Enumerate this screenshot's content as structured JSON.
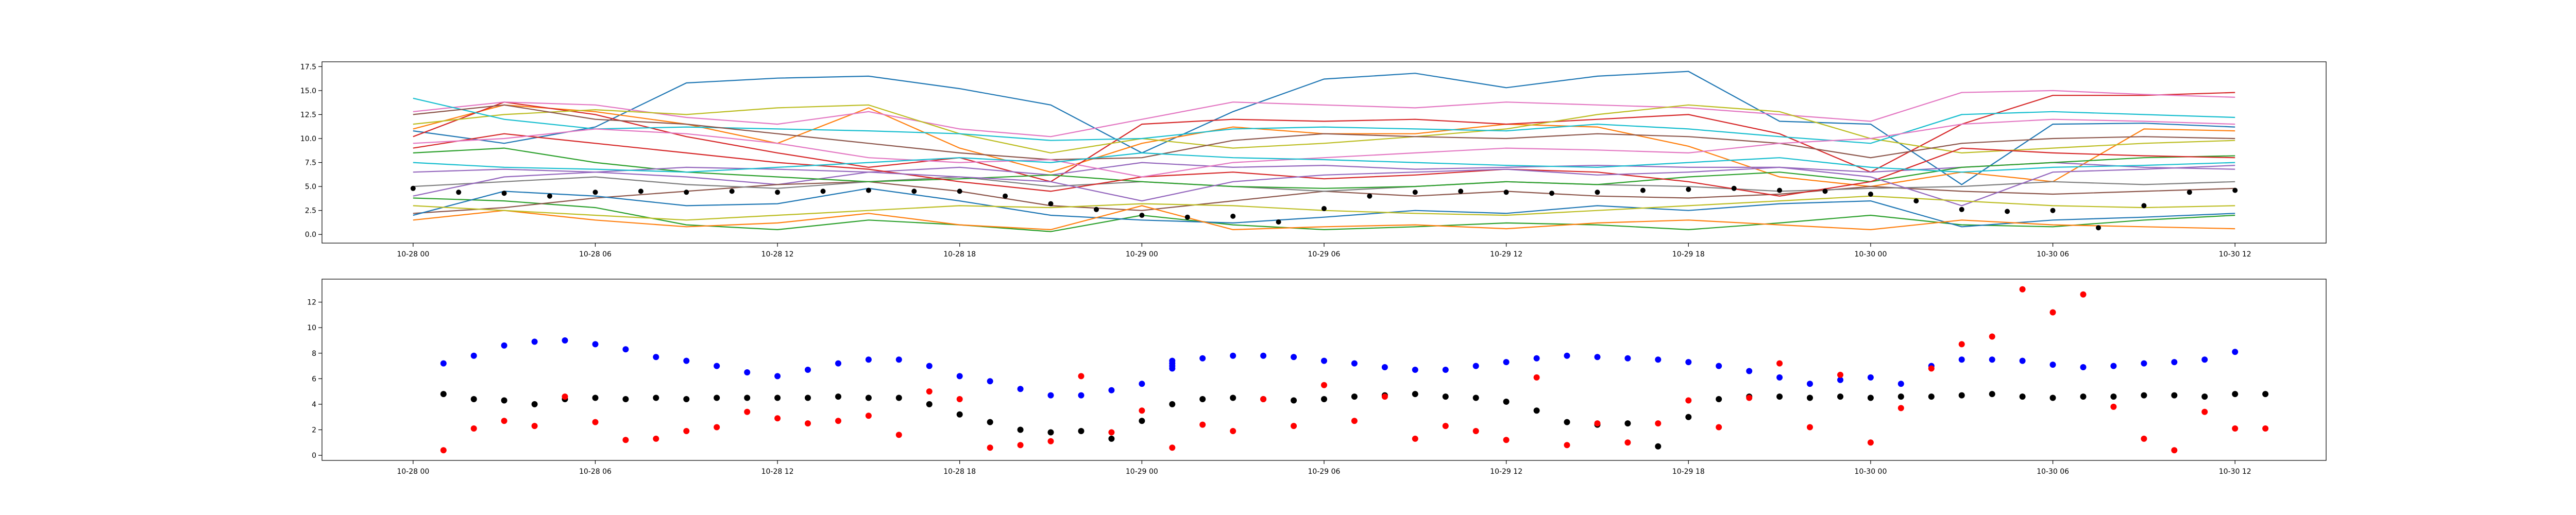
{
  "chart_data": [
    {
      "type": "line",
      "title": "",
      "xlabel": "",
      "ylabel": "",
      "x_ticks": [
        "10-28 00",
        "10-28 06",
        "10-28 12",
        "10-28 18",
        "10-29 00",
        "10-29 06",
        "10-29 12",
        "10-29 18",
        "10-30 00",
        "10-30 06",
        "10-30 12"
      ],
      "x_range_hours": [
        -3.0,
        63.0
      ],
      "ylim": [
        -0.9,
        18.0
      ],
      "y_ticks": [
        0.0,
        2.5,
        5.0,
        7.5,
        10.0,
        12.5,
        15.0,
        17.5
      ],
      "y_tick_labels": [
        "0.0",
        "2.5",
        "5.0",
        "7.5",
        "10.0",
        "12.5",
        "15.0",
        "17.5"
      ],
      "x_hours": [
        0,
        3,
        6,
        9,
        12,
        15,
        18,
        21,
        24,
        27,
        30,
        33,
        36,
        39,
        42,
        45,
        48,
        51,
        54,
        57,
        60
      ],
      "series": [
        {
          "color": "#1f77b4",
          "values": [
            10.8,
            9.5,
            11.2,
            15.8,
            16.3,
            16.5,
            15.2,
            13.5,
            8.5,
            12.8,
            16.2,
            16.8,
            15.3,
            16.5,
            17.0,
            11.8,
            11.5,
            5.2,
            11.5,
            11.6,
            11.2
          ]
        },
        {
          "color": "#ff7f0e",
          "values": [
            11.0,
            13.5,
            12.8,
            11.5,
            9.5,
            13.2,
            9.0,
            6.5,
            9.5,
            11.2,
            10.5,
            10.5,
            11.5,
            11.2,
            9.2,
            6.0,
            5.0,
            6.5,
            5.5,
            11.0,
            10.8
          ]
        },
        {
          "color": "#2ca02c",
          "values": [
            3.8,
            3.5,
            2.8,
            1.0,
            0.5,
            1.5,
            1.0,
            0.3,
            2.0,
            1.0,
            0.5,
            0.8,
            1.2,
            1.0,
            0.5,
            1.2,
            2.0,
            1.0,
            0.8,
            1.5,
            2.0
          ]
        },
        {
          "color": "#d62728",
          "values": [
            10.2,
            13.8,
            12.5,
            10.2,
            8.5,
            7.0,
            8.0,
            5.5,
            11.5,
            12.0,
            11.8,
            12.0,
            11.5,
            12.0,
            12.5,
            10.5,
            6.5,
            11.5,
            14.5,
            14.5,
            14.8
          ]
        },
        {
          "color": "#9467bd",
          "values": [
            6.5,
            6.8,
            6.5,
            6.0,
            5.2,
            6.5,
            7.0,
            6.2,
            7.5,
            7.0,
            7.2,
            6.8,
            7.0,
            7.2,
            7.0,
            7.0,
            6.5,
            7.0,
            7.5,
            7.0,
            6.8
          ]
        },
        {
          "color": "#8c564b",
          "values": [
            2.2,
            2.8,
            3.8,
            4.5,
            5.2,
            5.5,
            4.5,
            3.0,
            2.5,
            3.5,
            4.5,
            4.0,
            4.5,
            4.0,
            3.8,
            4.2,
            5.0,
            4.5,
            4.2,
            4.5,
            4.8
          ]
        },
        {
          "color": "#e377c2",
          "values": [
            12.8,
            13.8,
            13.5,
            12.2,
            11.5,
            12.8,
            11.0,
            10.2,
            12.0,
            13.8,
            13.5,
            13.2,
            13.8,
            13.5,
            13.2,
            12.5,
            11.8,
            14.8,
            15.0,
            14.6,
            14.3
          ]
        },
        {
          "color": "#7f7f7f",
          "values": [
            5.0,
            5.5,
            6.0,
            5.2,
            4.8,
            5.5,
            6.0,
            5.0,
            5.5,
            5.0,
            4.5,
            5.0,
            5.5,
            5.2,
            5.0,
            4.5,
            4.8,
            5.0,
            5.5,
            5.2,
            5.5
          ]
        },
        {
          "color": "#bcbd22",
          "values": [
            11.5,
            12.5,
            13.0,
            12.5,
            13.2,
            13.5,
            10.5,
            8.5,
            10.0,
            9.0,
            9.5,
            10.2,
            11.0,
            12.5,
            13.5,
            12.8,
            10.0,
            8.5,
            9.0,
            9.5,
            9.8
          ]
        },
        {
          "color": "#17becf",
          "values": [
            14.2,
            12.0,
            11.0,
            11.2,
            11.0,
            10.8,
            10.5,
            9.8,
            10.0,
            11.0,
            11.2,
            11.0,
            10.8,
            11.5,
            11.0,
            10.2,
            9.5,
            12.5,
            12.8,
            12.5,
            12.2
          ]
        },
        {
          "color": "#1f77b4",
          "values": [
            2.0,
            4.5,
            4.0,
            3.0,
            3.2,
            4.8,
            3.5,
            2.0,
            1.5,
            1.2,
            1.8,
            2.5,
            2.2,
            3.0,
            2.5,
            3.2,
            3.5,
            0.8,
            1.5,
            1.8,
            2.2
          ]
        },
        {
          "color": "#ff7f0e",
          "values": [
            1.5,
            2.5,
            1.5,
            0.8,
            1.2,
            2.2,
            1.0,
            0.5,
            3.0,
            0.5,
            0.8,
            1.0,
            0.6,
            1.2,
            1.5,
            1.0,
            0.5,
            1.5,
            1.0,
            0.8,
            0.6
          ]
        },
        {
          "color": "#2ca02c",
          "values": [
            8.5,
            9.0,
            7.5,
            6.5,
            6.0,
            5.5,
            5.8,
            6.2,
            5.5,
            5.0,
            4.8,
            5.0,
            5.5,
            5.2,
            6.0,
            6.5,
            5.5,
            7.0,
            7.5,
            8.0,
            8.2
          ]
        },
        {
          "color": "#d62728",
          "values": [
            9.0,
            10.5,
            9.5,
            8.5,
            7.5,
            6.8,
            5.5,
            4.5,
            6.0,
            6.5,
            5.8,
            6.2,
            6.8,
            6.5,
            5.5,
            4.0,
            5.5,
            9.0,
            8.5,
            8.2,
            8.0
          ]
        },
        {
          "color": "#9467bd",
          "values": [
            4.0,
            6.0,
            6.5,
            7.0,
            6.8,
            6.5,
            6.0,
            5.5,
            3.5,
            5.5,
            6.2,
            6.5,
            6.8,
            6.2,
            6.5,
            7.0,
            6.0,
            3.0,
            6.5,
            6.8,
            7.2
          ]
        },
        {
          "color": "#8c564b",
          "values": [
            12.5,
            13.5,
            12.0,
            11.5,
            10.5,
            9.5,
            8.5,
            7.8,
            8.0,
            9.8,
            10.5,
            10.2,
            10.0,
            10.5,
            10.2,
            9.5,
            8.0,
            9.5,
            10.0,
            10.2,
            10.0
          ]
        },
        {
          "color": "#e377c2",
          "values": [
            9.5,
            10.0,
            11.0,
            10.5,
            9.5,
            8.0,
            7.5,
            7.8,
            6.0,
            7.5,
            8.0,
            8.5,
            9.0,
            8.8,
            8.5,
            9.5,
            10.0,
            11.5,
            12.0,
            11.8,
            11.5
          ]
        },
        {
          "color": "#bcbd22",
          "values": [
            3.0,
            2.5,
            2.0,
            1.5,
            2.0,
            2.5,
            3.0,
            2.8,
            3.2,
            3.0,
            2.5,
            2.2,
            2.0,
            2.5,
            3.0,
            3.5,
            4.0,
            3.5,
            3.0,
            2.8,
            3.0
          ]
        },
        {
          "color": "#17becf",
          "values": [
            7.5,
            7.0,
            6.8,
            6.5,
            7.0,
            7.5,
            8.0,
            7.5,
            8.5,
            8.0,
            7.8,
            7.5,
            7.2,
            7.0,
            7.5,
            8.0,
            7.0,
            6.5,
            7.0,
            7.2,
            7.5
          ]
        }
      ],
      "markers": {
        "color": "#000000",
        "x_hours": [
          0,
          1.5,
          3,
          4.5,
          6,
          7.5,
          9,
          10.5,
          12,
          13.5,
          15,
          16.5,
          18,
          19.5,
          21,
          22.5,
          24,
          25.5,
          27,
          28.5,
          30,
          31.5,
          33,
          34.5,
          36,
          37.5,
          39,
          40.5,
          42,
          43.5,
          45,
          46.5,
          48,
          49.5,
          51,
          52.5,
          54,
          55.5,
          57,
          58.5,
          60
        ],
        "values": [
          4.8,
          4.4,
          4.3,
          4.0,
          4.4,
          4.5,
          4.4,
          4.5,
          4.4,
          4.5,
          4.6,
          4.5,
          4.5,
          4.0,
          3.2,
          2.6,
          2.0,
          1.8,
          1.9,
          1.3,
          2.7,
          4.0,
          4.4,
          4.5,
          4.4,
          4.3,
          4.4,
          4.6,
          4.7,
          4.8,
          4.6,
          4.5,
          4.2,
          3.5,
          2.6,
          2.4,
          2.5,
          0.7,
          3.0,
          4.4,
          4.6
        ]
      }
    },
    {
      "type": "scatter",
      "title": "",
      "xlabel": "",
      "ylabel": "",
      "x_ticks": [
        "10-28 00",
        "10-28 06",
        "10-28 12",
        "10-28 18",
        "10-29 00",
        "10-29 06",
        "10-29 12",
        "10-29 18",
        "10-30 00",
        "10-30 06",
        "10-30 12"
      ],
      "x_range_hours": [
        -3.0,
        63.0
      ],
      "ylim": [
        -0.4,
        13.8
      ],
      "y_ticks": [
        0,
        2,
        4,
        6,
        8,
        10,
        12
      ],
      "y_tick_labels": [
        "0",
        "2",
        "4",
        "6",
        "8",
        "10",
        "12"
      ],
      "series": [
        {
          "color": "#0000ff",
          "x_hours": [
            1,
            2,
            3,
            4,
            5,
            6,
            7,
            8,
            9,
            10,
            11,
            12,
            13,
            14,
            15,
            16,
            17,
            18,
            19,
            20,
            21,
            22,
            23,
            24,
            25,
            25,
            25,
            25,
            26,
            27,
            28,
            29,
            30,
            31,
            32,
            33,
            34,
            35,
            36,
            37,
            38,
            39,
            40,
            41,
            42,
            43,
            44,
            45,
            46,
            47,
            48,
            49,
            50,
            51,
            52,
            53,
            54,
            55,
            56,
            57,
            58,
            59,
            60
          ],
          "values": [
            7.2,
            7.8,
            8.6,
            8.9,
            9.0,
            8.7,
            8.3,
            7.7,
            7.4,
            7.0,
            6.5,
            6.2,
            6.7,
            7.2,
            7.5,
            7.5,
            7.0,
            6.2,
            5.8,
            5.2,
            4.7,
            4.7,
            5.1,
            5.6,
            6.8,
            7.0,
            7.2,
            7.4,
            7.6,
            7.8,
            7.8,
            7.7,
            7.4,
            7.2,
            6.9,
            6.7,
            6.7,
            7.0,
            7.3,
            7.6,
            7.8,
            7.7,
            7.6,
            7.5,
            7.3,
            7.0,
            6.6,
            6.1,
            5.6,
            5.9,
            6.1,
            5.6,
            7.0,
            7.5,
            7.5,
            7.4,
            7.1,
            6.9,
            7.0,
            7.2,
            7.3,
            7.5,
            8.1
          ]
        },
        {
          "color": "#000000",
          "x_hours": [
            1,
            2,
            3,
            4,
            5,
            6,
            7,
            8,
            9,
            10,
            11,
            12,
            13,
            14,
            15,
            16,
            17,
            18,
            19,
            20,
            21,
            22,
            23,
            24,
            25,
            26,
            27,
            28,
            29,
            30,
            31,
            32,
            33,
            34,
            35,
            36,
            37,
            38,
            39,
            40,
            41,
            42,
            43,
            44,
            45,
            46,
            47,
            48,
            49,
            50,
            51,
            52,
            53,
            54,
            55,
            56,
            57,
            58,
            59,
            60,
            61
          ],
          "values": [
            4.8,
            4.4,
            4.3,
            4.0,
            4.4,
            4.5,
            4.4,
            4.5,
            4.4,
            4.5,
            4.5,
            4.5,
            4.5,
            4.6,
            4.5,
            4.5,
            4.0,
            3.2,
            2.6,
            2.0,
            1.8,
            1.9,
            1.3,
            2.7,
            4.0,
            4.4,
            4.5,
            4.4,
            4.3,
            4.4,
            4.6,
            4.7,
            4.8,
            4.6,
            4.5,
            4.2,
            3.5,
            2.6,
            2.4,
            2.5,
            0.7,
            3.0,
            4.4,
            4.6,
            4.6,
            4.5,
            4.6,
            4.5,
            4.6,
            4.6,
            4.7,
            4.8,
            4.6,
            4.5,
            4.6,
            4.6,
            4.7,
            4.7,
            4.6,
            4.8,
            4.8
          ]
        },
        {
          "color": "#ff0000",
          "x_hours": [
            1,
            2,
            3,
            4,
            5,
            6,
            7,
            8,
            9,
            10,
            11,
            12,
            13,
            14,
            15,
            16,
            17,
            18,
            19,
            20,
            21,
            22,
            23,
            24,
            25,
            26,
            27,
            28,
            29,
            30,
            31,
            32,
            33,
            34,
            35,
            36,
            37,
            38,
            39,
            40,
            41,
            42,
            43,
            44,
            45,
            46,
            47,
            48,
            49,
            50,
            51,
            52,
            53,
            54,
            55,
            56,
            57,
            58,
            59,
            60,
            61
          ],
          "values": [
            0.4,
            2.1,
            2.7,
            2.3,
            4.6,
            2.6,
            1.2,
            1.3,
            1.9,
            2.2,
            3.4,
            2.9,
            2.5,
            2.7,
            3.1,
            1.6,
            5.0,
            4.4,
            0.6,
            0.8,
            1.1,
            6.2,
            1.8,
            3.5,
            0.6,
            2.4,
            1.9,
            4.4,
            2.3,
            5.5,
            2.7,
            4.6,
            1.3,
            2.3,
            1.9,
            1.2,
            6.1,
            0.8,
            2.5,
            1.0,
            2.5,
            4.3,
            2.2,
            4.5,
            7.2,
            2.2,
            6.3,
            1.0,
            3.7,
            6.8,
            8.7,
            9.3,
            13.0,
            11.2,
            12.6,
            3.8,
            1.3,
            0.4,
            3.4,
            2.1,
            2.1
          ]
        }
      ]
    }
  ]
}
